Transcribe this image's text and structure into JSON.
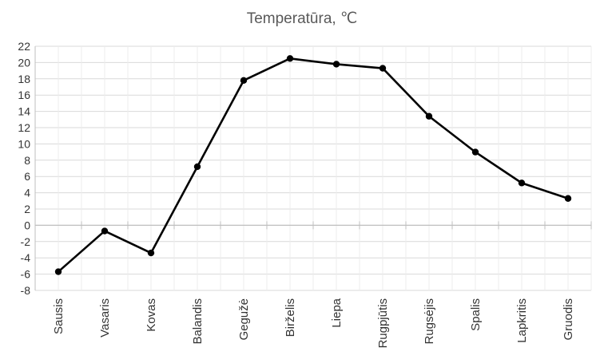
{
  "chart_data": {
    "type": "line",
    "title": "Temperatūra, ℃",
    "xlabel": "",
    "ylabel": "",
    "categories": [
      "Sausis",
      "Vasaris",
      "Kovas",
      "Balandis",
      "Gegužė",
      "Birželis",
      "Liepa",
      "Rugpjūtis",
      "Rugsėjis",
      "Spalis",
      "Lapkritis",
      "Gruodis"
    ],
    "series": [
      {
        "values": [
          -5.7,
          -0.7,
          -3.4,
          7.2,
          17.8,
          20.5,
          19.8,
          19.3,
          13.4,
          9.0,
          5.2,
          3.3
        ]
      }
    ],
    "ylim": [
      -8,
      22
    ],
    "ytick_step": 2,
    "grid": true,
    "legend": "none",
    "line_color": "#000000",
    "grid_color": "#d9d9d9"
  }
}
